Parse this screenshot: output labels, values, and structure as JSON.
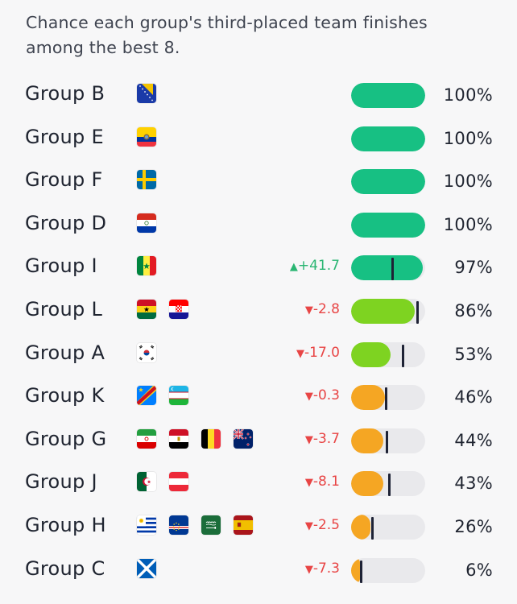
{
  "chart_data": {
    "type": "bar",
    "title": "Chance each group's third-placed team finishes among the best 8.",
    "xlim": [
      0,
      100
    ],
    "colors": {
      "high": "#17c083",
      "mid": "#7ed321",
      "low": "#f5a623",
      "up": "#2bb673",
      "down": "#e84545",
      "marker": "#1e2235"
    },
    "rows": [
      {
        "group": "Group B",
        "flags": [
          "bosnia"
        ],
        "value": 100,
        "label": "100%",
        "change": "",
        "direction": "",
        "previous": null
      },
      {
        "group": "Group E",
        "flags": [
          "ecuador"
        ],
        "value": 100,
        "label": "100%",
        "change": "",
        "direction": "",
        "previous": null
      },
      {
        "group": "Group F",
        "flags": [
          "sweden"
        ],
        "value": 100,
        "label": "100%",
        "change": "",
        "direction": "",
        "previous": null
      },
      {
        "group": "Group D",
        "flags": [
          "paraguay"
        ],
        "value": 100,
        "label": "100%",
        "change": "",
        "direction": "",
        "previous": null
      },
      {
        "group": "Group I",
        "flags": [
          "senegal"
        ],
        "value": 97,
        "label": "97%",
        "change": "+41.7",
        "direction": "up",
        "previous": 55.3
      },
      {
        "group": "Group L",
        "flags": [
          "ghana",
          "croatia"
        ],
        "value": 86,
        "label": "86%",
        "change": "-2.8",
        "direction": "down",
        "previous": 88.8
      },
      {
        "group": "Group A",
        "flags": [
          "south-korea"
        ],
        "value": 53,
        "label": "53%",
        "change": "-17.0",
        "direction": "down",
        "previous": 70
      },
      {
        "group": "Group K",
        "flags": [
          "dr-congo",
          "uzbekistan"
        ],
        "value": 46,
        "label": "46%",
        "change": "-0.3",
        "direction": "down",
        "previous": 46.3
      },
      {
        "group": "Group G",
        "flags": [
          "iran",
          "egypt",
          "belgium",
          "new-zealand"
        ],
        "value": 44,
        "label": "44%",
        "change": "-3.7",
        "direction": "down",
        "previous": 47.7
      },
      {
        "group": "Group J",
        "flags": [
          "algeria",
          "austria"
        ],
        "value": 43,
        "label": "43%",
        "change": "-8.1",
        "direction": "down",
        "previous": 51.1
      },
      {
        "group": "Group H",
        "flags": [
          "uruguay",
          "cape-verde",
          "saudi-arabia",
          "spain"
        ],
        "value": 26,
        "label": "26%",
        "change": "-2.5",
        "direction": "down",
        "previous": 28.5
      },
      {
        "group": "Group C",
        "flags": [
          "scotland"
        ],
        "value": 6,
        "label": "6%",
        "change": "-7.3",
        "direction": "down",
        "previous": 13.3
      }
    ]
  }
}
